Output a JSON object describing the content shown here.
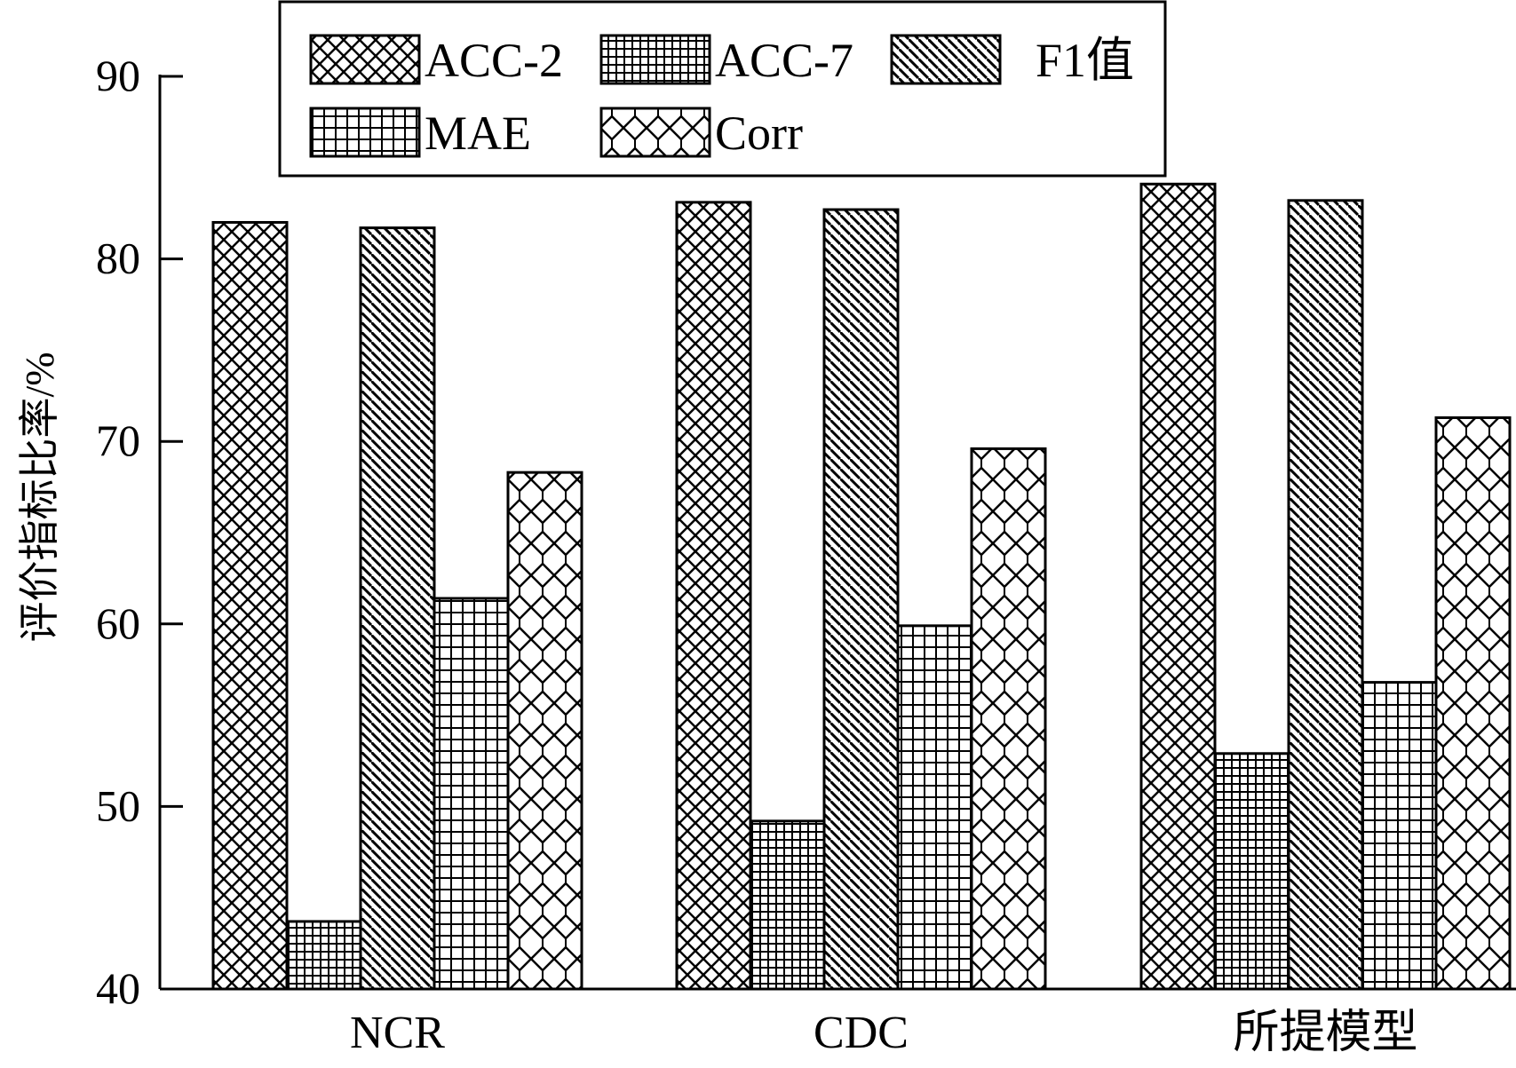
{
  "chart_data": {
    "type": "bar",
    "title": "",
    "xlabel": "",
    "ylabel": "评价指标比率/%",
    "ylim": [
      40,
      90
    ],
    "yticks": [
      40,
      50,
      60,
      70,
      80,
      90
    ],
    "categories": [
      "NCR",
      "CDC",
      "所提模型"
    ],
    "legend_position": "top",
    "grid": false,
    "series": [
      {
        "name": "ACC-2",
        "pattern": "crosshatch-diagonal",
        "values": [
          82.0,
          83.1,
          84.1
        ]
      },
      {
        "name": "ACC-7",
        "pattern": "dense-grid",
        "values": [
          43.7,
          49.2,
          52.9
        ]
      },
      {
        "name": "F1值",
        "pattern": "diagonal-stripes",
        "values": [
          81.7,
          82.7,
          83.2
        ]
      },
      {
        "name": "MAE",
        "pattern": "grid",
        "values": [
          61.4,
          59.9,
          56.8
        ]
      },
      {
        "name": "Corr",
        "pattern": "zigzag",
        "values": [
          68.3,
          69.6,
          71.3
        ]
      }
    ]
  }
}
